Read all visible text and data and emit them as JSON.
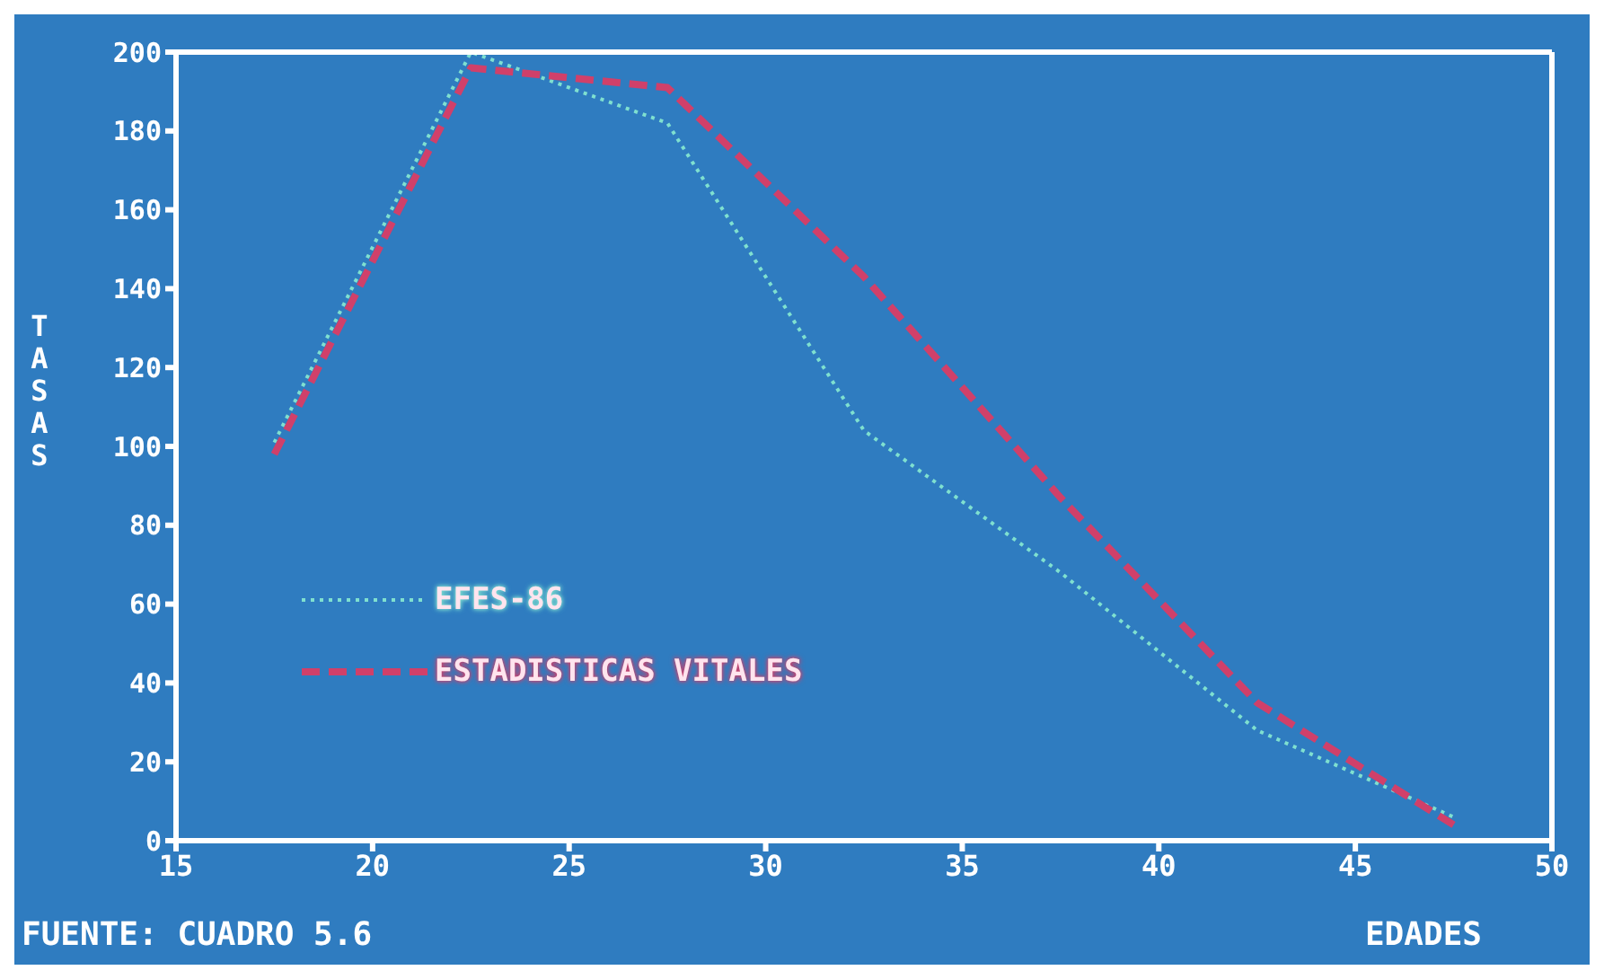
{
  "chart_data": {
    "type": "line",
    "xlabel": "EDADES",
    "ylabel": "TASAS",
    "annotations": [
      "FUENTE: CUADRO 5.6"
    ],
    "x": [
      17.5,
      22.5,
      27.5,
      32.5,
      37.5,
      42.5,
      47.5
    ],
    "series": [
      {
        "name": "EFES-86",
        "color": "#7fe0d0",
        "line_style": "dotted",
        "values": [
          101,
          200,
          182,
          104,
          68,
          28,
          6
        ]
      },
      {
        "name": "ESTADISTICAS VITALES",
        "color": "#d0406a",
        "line_style": "dashed",
        "values": [
          98,
          196,
          191,
          143,
          87,
          35,
          4
        ]
      }
    ],
    "xlim": [
      15,
      50
    ],
    "xticks": [
      15,
      20,
      25,
      30,
      35,
      40,
      45,
      50
    ],
    "ylim": [
      0,
      200
    ],
    "yticks": [
      0,
      20,
      40,
      60,
      80,
      100,
      120,
      140,
      160,
      180,
      200
    ],
    "grid": false,
    "legend": "left",
    "marker": "none"
  }
}
